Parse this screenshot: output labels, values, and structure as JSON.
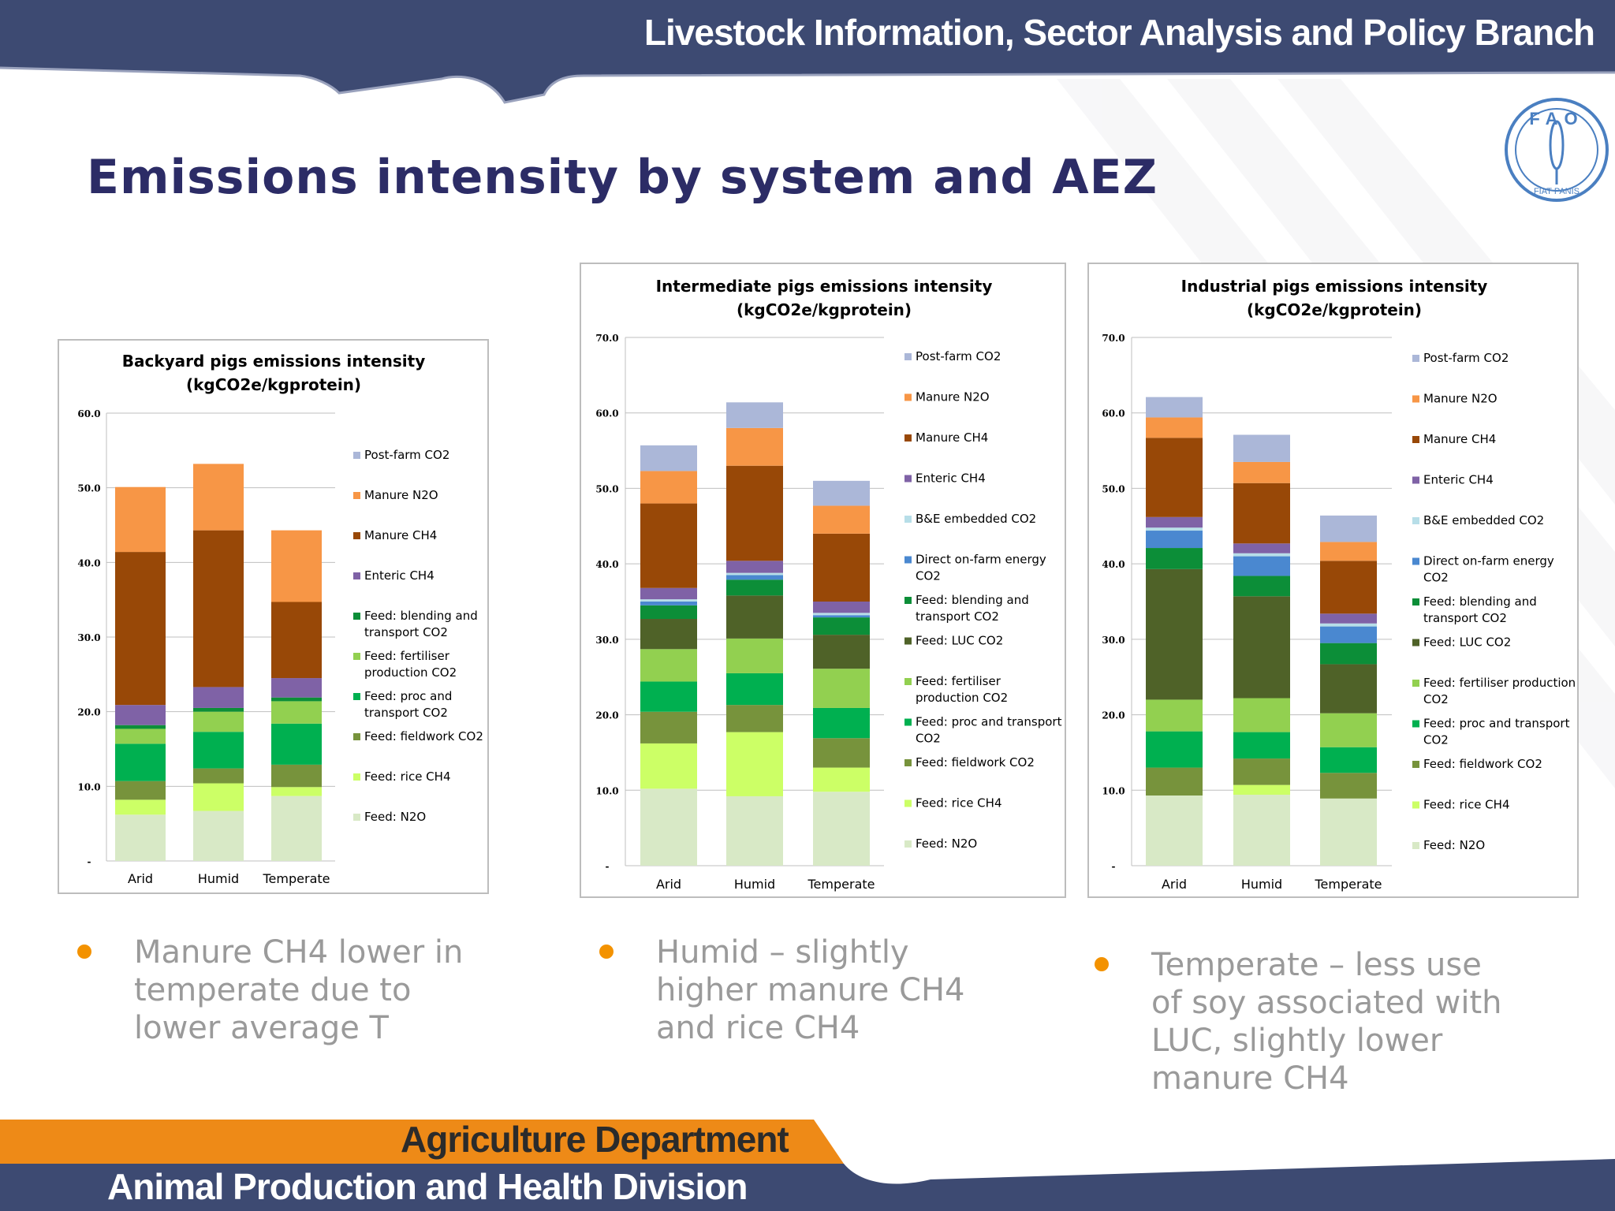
{
  "header": {
    "banner_title": "Livestock Information, Sector Analysis and Policy Branch"
  },
  "slide": {
    "title": "Emissions intensity by system and AEZ"
  },
  "logo": {
    "top_text": "FAO",
    "bottom_text": "FIAT PANIS"
  },
  "colors": {
    "navy": "#3d4a72",
    "orange_band": "#ee8a17",
    "title_text": "#2c2c66",
    "bullet_dot": "#f39200",
    "bullet_text": "#9a9a9a"
  },
  "legend_keys": [
    "Post-farm CO2",
    "Manure N2O",
    "Manure CH4",
    "Enteric CH4",
    "B&E embedded CO2",
    "Direct on-farm energy CO2",
    "Feed: blending and transport CO2",
    "Feed: LUC CO2",
    "Feed: fertiliser production CO2",
    "Feed: proc and transport CO2",
    "Feed: fieldwork CO2",
    "Feed: rice CH4",
    "Feed: N2O"
  ],
  "series_colors": {
    "Post-farm CO2": "#abb7d8",
    "Manure N2O": "#f79646",
    "Manure CH4": "#984807",
    "Enteric CH4": "#7f62a6",
    "B&E embedded CO2": "#b7dee8",
    "Direct on-farm energy CO2": "#4a88d0",
    "Feed: blending and transport CO2": "#0c8e38",
    "Feed: LUC CO2": "#4f6228",
    "Feed: fertiliser production CO2": "#92d050",
    "Feed: proc and transport CO2": "#00b050",
    "Feed: fieldwork CO2": "#77933c",
    "Feed: rice CH4": "#ccff66",
    "Feed: N2O": "#d8e9c6"
  },
  "chart_data": [
    {
      "type": "bar",
      "stacked": true,
      "title": "Backyard pigs emissions intensity (kgCO2e/kgprotein)",
      "title_lines": [
        "Backyard pigs emissions intensity",
        "(kgCO2e/kgprotein)"
      ],
      "categories": [
        "Arid",
        "Humid",
        "Temperate"
      ],
      "ylim": [
        0,
        60
      ],
      "yticks": [
        "-",
        "10.0",
        "20.0",
        "30.0",
        "40.0",
        "50.0",
        "60.0"
      ],
      "legend_lines": [
        [
          "Post-farm CO2"
        ],
        [
          "Manure N2O"
        ],
        [
          "Manure CH4"
        ],
        [
          "Enteric CH4"
        ],
        [
          "Feed: blending and",
          "transport CO2"
        ],
        [
          "Feed: fertiliser",
          "production CO2"
        ],
        [
          "Feed: proc and",
          "transport CO2"
        ],
        [
          "Feed: fieldwork CO2"
        ],
        [
          "Feed: rice CH4"
        ],
        [
          "Feed: N2O"
        ]
      ],
      "series": [
        {
          "name": "Feed: N2O",
          "values": [
            6.2,
            6.7,
            8.7
          ]
        },
        {
          "name": "Feed: rice CH4",
          "values": [
            2.0,
            3.7,
            1.2
          ]
        },
        {
          "name": "Feed: fieldwork CO2",
          "values": [
            2.5,
            2.0,
            3.0
          ]
        },
        {
          "name": "Feed: proc and transport CO2",
          "values": [
            5.0,
            4.9,
            5.5
          ]
        },
        {
          "name": "Feed: fertiliser production CO2",
          "values": [
            2.0,
            2.7,
            3.0
          ]
        },
        {
          "name": "Feed: blending and transport CO2",
          "values": [
            0.5,
            0.5,
            0.5
          ]
        },
        {
          "name": "Enteric CH4",
          "values": [
            2.7,
            2.8,
            2.6
          ]
        },
        {
          "name": "Manure CH4",
          "values": [
            20.5,
            21.0,
            10.2
          ]
        },
        {
          "name": "Manure N2O",
          "values": [
            8.7,
            8.9,
            9.6
          ]
        },
        {
          "name": "Post-farm CO2",
          "values": [
            0,
            0,
            0
          ]
        }
      ]
    },
    {
      "type": "bar",
      "stacked": true,
      "title": "Intermediate pigs emissions intensity (kgCO2e/kgprotein)",
      "title_lines": [
        "Intermediate pigs emissions intensity",
        "(kgCO2e/kgprotein)"
      ],
      "categories": [
        "Arid",
        "Humid",
        "Temperate"
      ],
      "ylim": [
        0,
        70
      ],
      "yticks": [
        "-",
        "10.0",
        "20.0",
        "30.0",
        "40.0",
        "50.0",
        "60.0",
        "70.0"
      ],
      "legend_lines": [
        [
          "Post-farm CO2"
        ],
        [
          "Manure N2O"
        ],
        [
          "Manure CH4"
        ],
        [
          "Enteric CH4"
        ],
        [
          "B&E embedded CO2"
        ],
        [
          "Direct on-farm energy",
          "CO2"
        ],
        [
          "Feed: blending and",
          "transport CO2"
        ],
        [
          "Feed: LUC CO2"
        ],
        [
          "Feed: fertiliser",
          "production CO2"
        ],
        [
          "Feed: proc and transport",
          "CO2"
        ],
        [
          "Feed: fieldwork CO2"
        ],
        [
          "Feed: rice CH4"
        ],
        [
          "Feed: N2O"
        ]
      ],
      "series": [
        {
          "name": "Feed: N2O",
          "values": [
            10.2,
            9.2,
            9.8
          ]
        },
        {
          "name": "Feed: rice CH4",
          "values": [
            6.0,
            8.5,
            3.2
          ]
        },
        {
          "name": "Feed: fieldwork CO2",
          "values": [
            4.2,
            3.6,
            3.9
          ]
        },
        {
          "name": "Feed: proc and transport CO2",
          "values": [
            4.0,
            4.2,
            4.0
          ]
        },
        {
          "name": "Feed: fertiliser production CO2",
          "values": [
            4.3,
            4.6,
            5.2
          ]
        },
        {
          "name": "Feed: LUC CO2",
          "values": [
            4.0,
            5.7,
            4.5
          ]
        },
        {
          "name": "Feed: blending and transport CO2",
          "values": [
            1.8,
            2.1,
            2.3
          ]
        },
        {
          "name": "Direct on-farm energy CO2",
          "values": [
            0.5,
            0.6,
            0.3
          ]
        },
        {
          "name": "B&E embedded CO2",
          "values": [
            0.3,
            0.3,
            0.3
          ]
        },
        {
          "name": "Enteric CH4",
          "values": [
            1.5,
            1.6,
            1.5
          ]
        },
        {
          "name": "Manure CH4",
          "values": [
            11.2,
            12.6,
            9.0
          ]
        },
        {
          "name": "Manure N2O",
          "values": [
            4.3,
            5.0,
            3.7
          ]
        },
        {
          "name": "Post-farm CO2",
          "values": [
            3.4,
            3.4,
            3.3
          ]
        }
      ]
    },
    {
      "type": "bar",
      "stacked": true,
      "title": "Industrial pigs emissions intensity (kgCO2e/kgprotein)",
      "title_lines": [
        "Industrial pigs  emissions intensity",
        "(kgCO2e/kgprotein)"
      ],
      "categories": [
        "Arid",
        "Humid",
        "Temperate"
      ],
      "ylim": [
        0,
        70
      ],
      "yticks": [
        "-",
        "10.0",
        "20.0",
        "30.0",
        "40.0",
        "50.0",
        "60.0",
        "70.0"
      ],
      "legend_lines": [
        [
          "Post-farm CO2"
        ],
        [
          "Manure N2O"
        ],
        [
          "Manure CH4"
        ],
        [
          "Enteric CH4"
        ],
        [
          "B&E embedded CO2"
        ],
        [
          "Direct on-farm energy",
          "CO2"
        ],
        [
          "Feed: blending and",
          "transport CO2"
        ],
        [
          "Feed: LUC CO2"
        ],
        [
          "Feed: fertiliser production",
          "CO2"
        ],
        [
          "Feed: proc and transport",
          "CO2"
        ],
        [
          "Feed: fieldwork CO2"
        ],
        [
          "Feed: rice CH4"
        ],
        [
          "Feed: N2O"
        ]
      ],
      "series": [
        {
          "name": "Feed: N2O",
          "values": [
            9.3,
            9.4,
            8.9
          ]
        },
        {
          "name": "Feed: rice CH4",
          "values": [
            0,
            1.3,
            0
          ]
        },
        {
          "name": "Feed: fieldwork CO2",
          "values": [
            3.7,
            3.5,
            3.4
          ]
        },
        {
          "name": "Feed: proc and transport CO2",
          "values": [
            4.8,
            3.5,
            3.4
          ]
        },
        {
          "name": "Feed: fertiliser production CO2",
          "values": [
            4.2,
            4.5,
            4.5
          ]
        },
        {
          "name": "Feed: LUC CO2",
          "values": [
            17.3,
            13.5,
            6.5
          ]
        },
        {
          "name": "Feed: blending and transport CO2",
          "values": [
            2.8,
            2.7,
            2.8
          ]
        },
        {
          "name": "Direct on-farm energy CO2",
          "values": [
            2.3,
            2.6,
            2.2
          ]
        },
        {
          "name": "B&E embedded CO2",
          "values": [
            0.4,
            0.4,
            0.4
          ]
        },
        {
          "name": "Enteric CH4",
          "values": [
            1.4,
            1.3,
            1.3
          ]
        },
        {
          "name": "Manure CH4",
          "values": [
            10.5,
            8.0,
            7.0
          ]
        },
        {
          "name": "Manure N2O",
          "values": [
            2.7,
            2.8,
            2.5
          ]
        },
        {
          "name": "Post-farm CO2",
          "values": [
            2.7,
            3.6,
            3.5
          ]
        }
      ]
    }
  ],
  "bullets": [
    {
      "text": "Manure CH4 lower in temperate due to lower average T",
      "lines": [
        "Manure CH4 lower in",
        "temperate due to",
        "lower average T"
      ]
    },
    {
      "text": "Humid – slightly higher manure CH4 and rice CH4",
      "lines": [
        "Humid – slightly",
        "higher manure CH4",
        "and rice CH4"
      ]
    },
    {
      "text": "Temperate – less use of soy associated with LUC, slightly lower manure CH4",
      "lines": [
        "Temperate – less use",
        "of soy associated with",
        "LUC, slightly lower",
        "manure CH4"
      ]
    }
  ],
  "footer": {
    "department": "Agriculture Department",
    "division": "Animal Production and Health Division"
  }
}
